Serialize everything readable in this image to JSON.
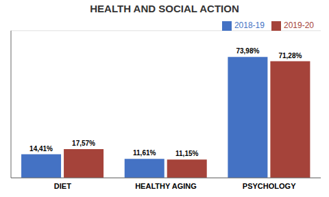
{
  "chart_data": {
    "type": "bar",
    "title": "HEALTH AND SOCIAL ACTION",
    "categories": [
      "DIET",
      "HEALTHY AGING",
      "PSYCHOLOGY"
    ],
    "series": [
      {
        "name": "2018-19",
        "color": "#4472C4",
        "values": [
          14.41,
          11.61,
          73.98
        ],
        "value_labels": [
          "14,41%",
          "11,61%",
          "73,98%"
        ]
      },
      {
        "name": "2019-20",
        "color": "#A5433A",
        "values": [
          17.57,
          11.15,
          71.28
        ],
        "value_labels": [
          "17,57%",
          "11,15%",
          "71,28%"
        ]
      }
    ],
    "ylim": [
      0,
      90
    ],
    "yticks": [
      0,
      20,
      40,
      60,
      80
    ],
    "grid": true,
    "legend": "upper right",
    "data_labels": true,
    "tick_labels": "x"
  }
}
